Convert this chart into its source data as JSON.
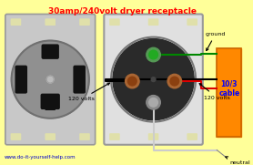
{
  "title": "30amp/240volt dryer receptacle",
  "title_color": "#ff0000",
  "title_fontsize": 6.5,
  "bg_color": "#ffff99",
  "website": "www.do-it-yourself-help.com",
  "website_color": "#0000cc",
  "website_fontsize": 4.0,
  "label_120v_left": "120 volts",
  "label_120v_right": "120 volts",
  "label_ground": "ground",
  "label_neutral": "neutral",
  "label_cable": "10/3\ncable",
  "label_color": "#000000",
  "cable_label_color": "#0000ff",
  "ground_wire_color": "#008800",
  "red_wire_color": "#dd0000",
  "black_wire_color": "#000000",
  "neutral_wire_color": "#cccccc",
  "orange_box_color": "#ff8800",
  "left_plate_color": "#c8c8c8",
  "left_plate_edge": "#999999",
  "right_plate_color": "#e0e0e0",
  "right_plate_edge": "#999999",
  "left_circle_color": "#909090",
  "right_circle_color": "#2a2a2a",
  "screw_hole_color": "#e0e0aa",
  "slot_color": "#111111",
  "terminal_green": "#22aa22",
  "terminal_brown": "#8B4010",
  "terminal_silver": "#aaaaaa"
}
